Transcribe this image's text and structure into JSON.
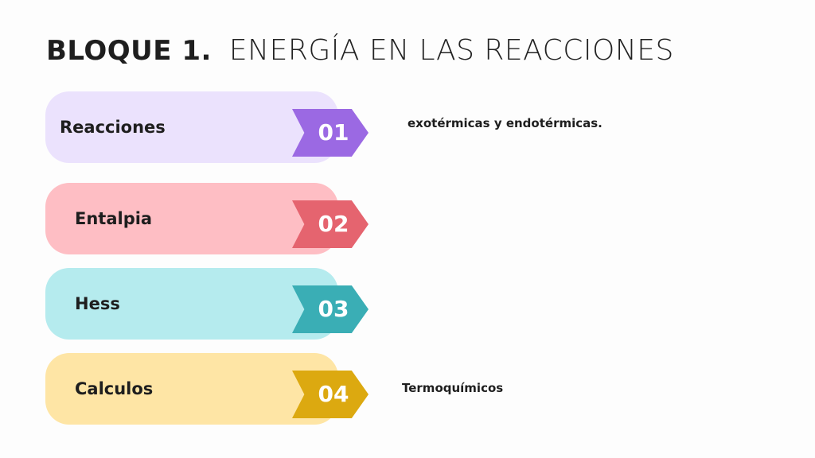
{
  "title": {
    "bold": "BLOQUE 1.",
    "light": "ENERGÍA EN LAS REACCIONES"
  },
  "items": [
    {
      "label": "Reacciones",
      "number": "01",
      "pill_color": "#ebe2fd",
      "arrow_color": "#9b69e3"
    },
    {
      "label": "Entalpia",
      "number": "02",
      "pill_color": "#febec4",
      "arrow_color": "#e5646f"
    },
    {
      "label": "Hess",
      "number": "03",
      "pill_color": "#b5ebee",
      "arrow_color": "#3aaeb5"
    },
    {
      "label": "Calculos",
      "number": "04",
      "pill_color": "#fee5a5",
      "arrow_color": "#dca910"
    }
  ],
  "notes": {
    "first": "exotérmicas y endotérmicas.",
    "fourth": "Termoquímicos"
  }
}
